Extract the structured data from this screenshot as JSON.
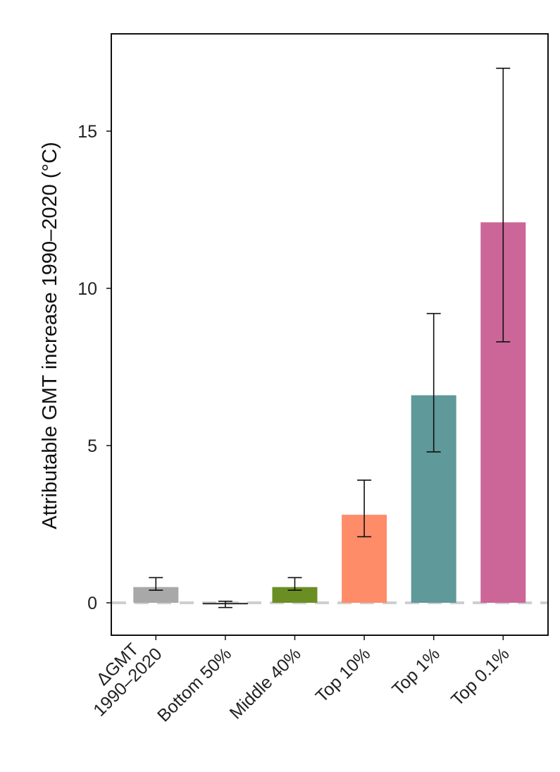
{
  "chart_data": {
    "type": "bar",
    "title": "",
    "xlabel": "",
    "ylabel": "Attributable GMT increase 1990–2020 (°C)",
    "categories": [
      [
        "ΔGMT",
        "1990–2020"
      ],
      [
        "Bottom 50%"
      ],
      [
        "Middle 40%"
      ],
      [
        "Top 10%"
      ],
      [
        "Top 1%"
      ],
      [
        "Top 0.1%"
      ]
    ],
    "values": [
      0.5,
      -0.05,
      0.5,
      2.8,
      6.6,
      12.1
    ],
    "error_low": [
      0.4,
      -0.15,
      0.4,
      2.1,
      4.8,
      8.3
    ],
    "error_high": [
      0.8,
      0.05,
      0.8,
      3.9,
      9.2,
      17.0
    ],
    "colors": [
      "#a8a8a8",
      "#3a3a3a",
      "#6b8e23",
      "#ff8c69",
      "#5f9999",
      "#cc6699"
    ],
    "ylim": [
      -1,
      18
    ],
    "yticks": [
      0,
      5,
      10,
      15
    ],
    "reference_line": {
      "y": 0,
      "color": "#cfcfcf",
      "style": "dashed"
    },
    "grid": false,
    "legend": "none"
  }
}
